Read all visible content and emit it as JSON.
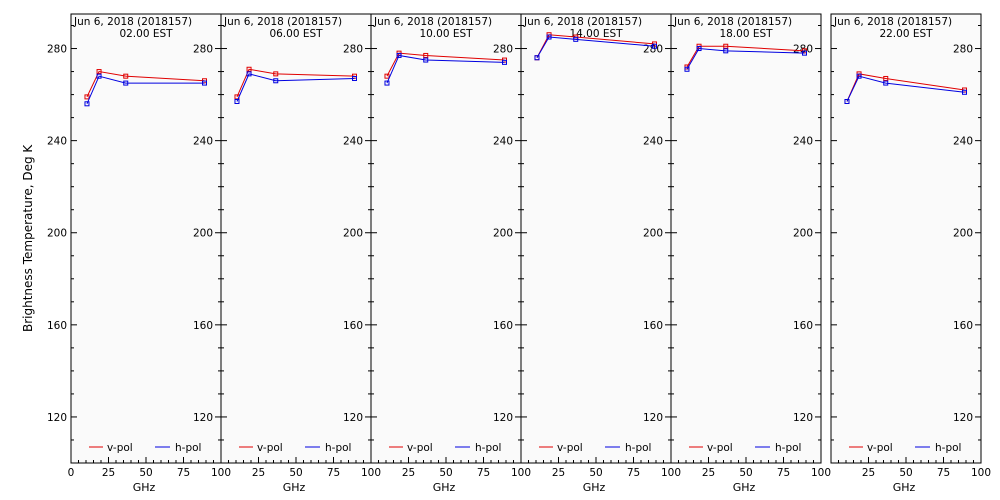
{
  "ylabel": "Brightness Temperature, Deg K",
  "colors": {
    "v": "#e00000",
    "h": "#0000e0",
    "panel_bg": "#fafafa",
    "axis": "#000000"
  },
  "chart_data": {
    "type": "line",
    "ylim": [
      100,
      295
    ],
    "yticks": [
      120,
      160,
      200,
      240,
      280
    ],
    "xlim": [
      0,
      100
    ],
    "xticks": [
      0,
      25,
      50,
      75,
      100
    ],
    "xlabel": "GHz",
    "ylabel": "Brightness Temperature, Deg K",
    "x": [
      10.65,
      18.7,
      36.5,
      89
    ],
    "legend": [
      "v-pol",
      "h-pol"
    ],
    "legend_position": "bottom",
    "grid": false,
    "panels": [
      {
        "title": "Jun  6, 2018 (2018157)",
        "subtitle": "02.00 EST",
        "series": [
          {
            "name": "v-pol",
            "values": [
              259,
              270,
              268,
              266
            ]
          },
          {
            "name": "h-pol",
            "values": [
              256,
              268,
              265,
              265
            ]
          }
        ]
      },
      {
        "title": "Jun  6, 2018 (2018157)",
        "subtitle": "06.00 EST",
        "series": [
          {
            "name": "v-pol",
            "values": [
              259,
              271,
              269,
              268
            ]
          },
          {
            "name": "h-pol",
            "values": [
              257,
              269,
              266,
              267
            ]
          }
        ]
      },
      {
        "title": "Jun  6, 2018 (2018157)",
        "subtitle": "10.00 EST",
        "series": [
          {
            "name": "v-pol",
            "values": [
              268,
              278,
              277,
              275
            ]
          },
          {
            "name": "h-pol",
            "values": [
              265,
              277,
              275,
              274
            ]
          }
        ]
      },
      {
        "title": "Jun  6, 2018 (2018157)",
        "subtitle": "14.00 EST",
        "series": [
          {
            "name": "v-pol",
            "values": [
              276,
              286,
              285,
              282
            ]
          },
          {
            "name": "h-pol",
            "values": [
              276,
              285,
              284,
              281
            ]
          }
        ]
      },
      {
        "title": "Jun  6, 2018 (2018157)",
        "subtitle": "18.00 EST",
        "series": [
          {
            "name": "v-pol",
            "values": [
              272,
              281,
              281,
              279
            ]
          },
          {
            "name": "h-pol",
            "values": [
              271,
              280,
              279,
              278
            ]
          }
        ]
      },
      {
        "title": "Jun  6, 2018 (2018157)",
        "subtitle": "22.00 EST",
        "series": [
          {
            "name": "v-pol",
            "values": [
              257,
              269,
              267,
              262
            ]
          },
          {
            "name": "h-pol",
            "values": [
              257,
              268,
              265,
              261
            ]
          }
        ]
      }
    ]
  }
}
